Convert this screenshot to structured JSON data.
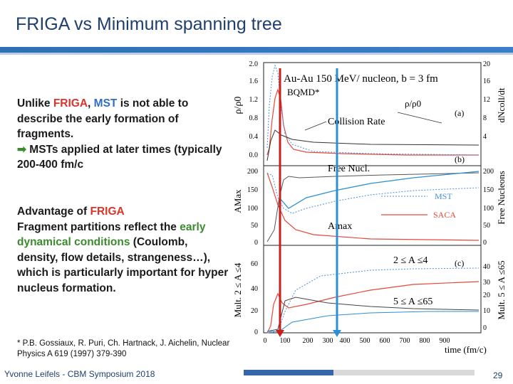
{
  "slide": {
    "title": "FRIGA vs Minimum spanning tree",
    "footer_left": "Yvonne Leifels - CBM Symposium 2018",
    "page_number": "29",
    "accent_color": "#2e6fb5"
  },
  "left": {
    "para1": {
      "t1": "Unlike ",
      "friga": "FRIGA",
      "t2": ", ",
      "mst": "MST",
      "t3": " is not able to describe the early formation of fragments.",
      "arrow": "➡",
      "t4": " MSTs applied at later times (typically 200-400 fm/c"
    },
    "para2": {
      "heading_t1": "Advantage of ",
      "heading_friga": "FRIGA",
      "t1": "Fragment partitions reflect the ",
      "early": "early dynamical conditions",
      "t2": " (Coulomb, density, flow details, strangeness…), which is particularly important for hyper nucleus formation."
    },
    "reference": "* P.B. Gossiaux, R. Puri, Ch. Hartnack, J. Aichelin, Nuclear Physics A 619 (1997) 379-390"
  },
  "figure": {
    "header_text": "Au-Au 150 MeV/ nucleon, b = 3 fm",
    "bqmd_label": "BQMD*",
    "panel_a": {
      "label": "(a)",
      "left_axis": "ρ/ρ0",
      "right_axis": "dNcoll/dt",
      "left_ticks": [
        "2.0",
        "1.6",
        "1.2",
        "0.8",
        "0.4",
        "0.0"
      ],
      "right_ticks": [
        "20",
        "16",
        "12",
        "8",
        "4"
      ],
      "rho_annotation": "ρ/ρ0",
      "collision_annotation": "Collision Rate"
    },
    "panel_b": {
      "label": "(b)",
      "left_axis": "AMax",
      "right_axis": "Free Nucleons",
      "left_ticks": [
        "200",
        "150",
        "100",
        "50",
        "0"
      ],
      "right_ticks": [
        "200",
        "150",
        "100",
        "50",
        "0"
      ],
      "free_annotation": "Free Nucl.",
      "amax_annotation": "Amax",
      "legend_mst": "MST",
      "legend_saca": "SACA"
    },
    "panel_c": {
      "label": "(c)",
      "left_axis": "Mult. 2 ≤ A ≤4",
      "right_axis": "Mult. 5 ≤ A ≤65",
      "left_ticks": [
        "60",
        "40",
        "20",
        "0"
      ],
      "right_ticks": [
        "40",
        "30",
        "20",
        "10",
        "0"
      ],
      "range1": "2 ≤ A ≤4",
      "range2": "5 ≤ A ≤65"
    },
    "x_ticks": [
      "0",
      "100",
      "200",
      "300",
      "400",
      "500",
      "600",
      "700",
      "800",
      "900"
    ],
    "x_axis": "time (fm/c)",
    "markers": [
      {
        "label": "FRIGA marker",
        "x": 100,
        "color": "#c8201c"
      },
      {
        "label": "MST marker",
        "x": 400,
        "color": "#2b8fd6"
      }
    ]
  }
}
